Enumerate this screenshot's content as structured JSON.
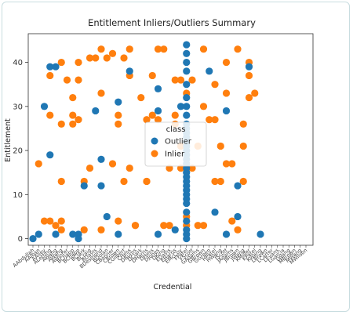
{
  "chart_data": {
    "type": "scatter",
    "title": "Entitlement Inliers/Outliers Summary",
    "xlabel": "Credential",
    "ylabel": "Entitlement",
    "ylim": [
      -1.5,
      46.5
    ],
    "yticks": [
      0,
      10,
      20,
      30,
      40
    ],
    "grid": false,
    "legend_title": "class",
    "legend_position": "center-left",
    "categories": [
      "AAbdullah",
      "AAlban",
      "AAlley",
      "ALetting",
      "AWang",
      "AWang",
      "AWinter",
      "BChapp",
      "BChapp",
      "BClark",
      "BCraig",
      "BDavis",
      "BDesmond",
      "BDolan",
      "CBonner",
      "CBrown",
      "CGilbert",
      "CHess",
      "DBurns",
      "DClark",
      "DHarris",
      "DHess",
      "DJones",
      "DKing",
      "EDavis",
      "EHarris",
      "EMcCoy",
      "FPatel",
      "FScott",
      "GAdams",
      "GBrown",
      "GGreen",
      "HPatel",
      "HWang",
      "IScott",
      "JAdams",
      "JBrown",
      "JWang",
      "KMiller",
      "KPatel",
      "KWang",
      "LBrown",
      "LCarter",
      "LEvans",
      "LGarcia",
      "LWang",
      "MBrown",
      "MWang",
      "MWilson"
    ],
    "series": [
      {
        "name": "Outlier",
        "color": "#1f77b4",
        "points": [
          [
            0,
            0
          ],
          [
            1,
            1
          ],
          [
            2,
            30
          ],
          [
            3,
            19
          ],
          [
            3,
            39
          ],
          [
            4,
            1
          ],
          [
            4,
            39
          ],
          [
            7,
            1
          ],
          [
            8,
            1
          ],
          [
            8,
            0
          ],
          [
            9,
            12
          ],
          [
            11,
            29
          ],
          [
            12,
            18
          ],
          [
            12,
            12
          ],
          [
            13,
            5
          ],
          [
            15,
            1
          ],
          [
            15,
            31
          ],
          [
            17,
            38
          ],
          [
            22,
            1
          ],
          [
            22,
            29
          ],
          [
            22,
            34
          ],
          [
            25,
            2
          ],
          [
            26,
            30
          ],
          [
            27,
            0
          ],
          [
            27,
            1
          ],
          [
            27,
            2
          ],
          [
            27,
            4
          ],
          [
            27,
            6
          ],
          [
            27,
            8
          ],
          [
            27,
            9
          ],
          [
            27,
            10
          ],
          [
            27,
            11
          ],
          [
            27,
            12
          ],
          [
            27,
            13
          ],
          [
            27,
            14
          ],
          [
            27,
            15
          ],
          [
            27,
            16
          ],
          [
            27,
            17
          ],
          [
            27,
            18
          ],
          [
            27,
            19
          ],
          [
            27,
            20
          ],
          [
            27,
            21
          ],
          [
            27,
            22
          ],
          [
            27,
            23
          ],
          [
            27,
            24
          ],
          [
            27,
            25
          ],
          [
            27,
            26
          ],
          [
            27,
            28
          ],
          [
            27,
            30
          ],
          [
            27,
            32
          ],
          [
            27,
            35
          ],
          [
            27,
            38
          ],
          [
            27,
            40
          ],
          [
            27,
            42
          ],
          [
            27,
            44
          ],
          [
            31,
            38
          ],
          [
            32,
            6
          ],
          [
            34,
            1
          ],
          [
            34,
            29
          ],
          [
            36,
            12
          ],
          [
            36,
            5
          ],
          [
            38,
            39
          ],
          [
            40,
            1
          ]
        ]
      },
      {
        "name": "Inlier",
        "color": "#ff7f0e",
        "points": [
          [
            1,
            17
          ],
          [
            2,
            4
          ],
          [
            3,
            4
          ],
          [
            3,
            28
          ],
          [
            3,
            37
          ],
          [
            4,
            3
          ],
          [
            5,
            26
          ],
          [
            5,
            13
          ],
          [
            5,
            2
          ],
          [
            5,
            4
          ],
          [
            5,
            40
          ],
          [
            6,
            36
          ],
          [
            7,
            28
          ],
          [
            7,
            26
          ],
          [
            7,
            32
          ],
          [
            8,
            27
          ],
          [
            8,
            36
          ],
          [
            8,
            40
          ],
          [
            9,
            2
          ],
          [
            9,
            13
          ],
          [
            10,
            41
          ],
          [
            10,
            16
          ],
          [
            11,
            41
          ],
          [
            12,
            33
          ],
          [
            12,
            2
          ],
          [
            12,
            43
          ],
          [
            13,
            41
          ],
          [
            14,
            17
          ],
          [
            14,
            42
          ],
          [
            15,
            26
          ],
          [
            15,
            28
          ],
          [
            15,
            4
          ],
          [
            16,
            13
          ],
          [
            16,
            41
          ],
          [
            17,
            37
          ],
          [
            17,
            43
          ],
          [
            17,
            16
          ],
          [
            18,
            3
          ],
          [
            18,
            3
          ],
          [
            19,
            32
          ],
          [
            20,
            27
          ],
          [
            20,
            13
          ],
          [
            20,
            13
          ],
          [
            21,
            37
          ],
          [
            21,
            28
          ],
          [
            22,
            43
          ],
          [
            22,
            27
          ],
          [
            23,
            43
          ],
          [
            23,
            3
          ],
          [
            24,
            3
          ],
          [
            24,
            16
          ],
          [
            25,
            26
          ],
          [
            25,
            28
          ],
          [
            25,
            36
          ],
          [
            26,
            36
          ],
          [
            26,
            21
          ],
          [
            26,
            16
          ],
          [
            27,
            33
          ],
          [
            27,
            5
          ],
          [
            27,
            3
          ],
          [
            28,
            16
          ],
          [
            28,
            36
          ],
          [
            29,
            21
          ],
          [
            29,
            3
          ],
          [
            30,
            3
          ],
          [
            30,
            30
          ],
          [
            30,
            43
          ],
          [
            31,
            27
          ],
          [
            32,
            35
          ],
          [
            32,
            27
          ],
          [
            32,
            13
          ],
          [
            33,
            21
          ],
          [
            33,
            13
          ],
          [
            34,
            40
          ],
          [
            34,
            17
          ],
          [
            34,
            33
          ],
          [
            35,
            17
          ],
          [
            35,
            4
          ],
          [
            36,
            43
          ],
          [
            36,
            2
          ],
          [
            37,
            26
          ],
          [
            37,
            21
          ],
          [
            37,
            13
          ],
          [
            38,
            40
          ],
          [
            38,
            37
          ],
          [
            38,
            32
          ],
          [
            39,
            33
          ]
        ]
      }
    ]
  }
}
